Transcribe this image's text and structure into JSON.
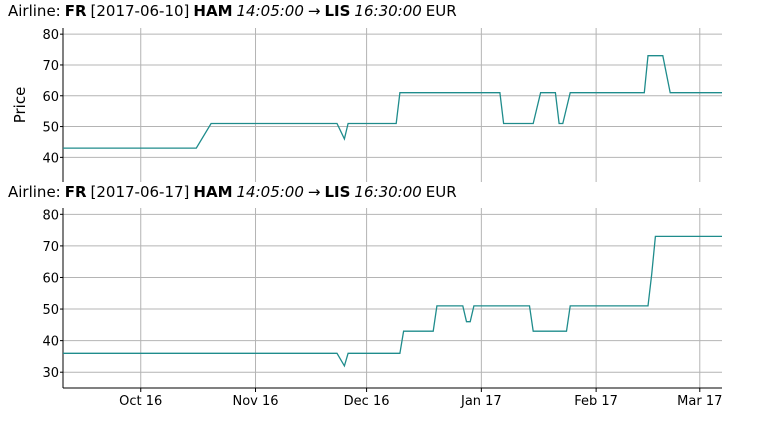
{
  "chart_data": [
    {
      "type": "line",
      "title": [
        {
          "text": "Airline:",
          "style": "normal"
        },
        {
          "text": "FR",
          "style": "bold"
        },
        {
          "text": "[2017-06-10]",
          "style": "normal"
        },
        {
          "text": "HAM",
          "style": "bold"
        },
        {
          "text": "14:05:00",
          "style": "italic"
        },
        {
          "text": "→",
          "style": "normal"
        },
        {
          "text": "LIS",
          "style": "bold"
        },
        {
          "text": "16:30:00",
          "style": "italic"
        },
        {
          "text": "EUR",
          "style": "normal"
        }
      ],
      "ylabel": "Price",
      "x": [
        "2016-09-10",
        "2016-10-16",
        "2016-10-20",
        "2016-11-23",
        "2016-11-25",
        "2016-11-26",
        "2016-12-09",
        "2016-12-10",
        "2017-01-06",
        "2017-01-07",
        "2017-01-15",
        "2017-01-17",
        "2017-01-21",
        "2017-01-22",
        "2017-01-23",
        "2017-01-25",
        "2017-02-14",
        "2017-02-15",
        "2017-02-19",
        "2017-02-21",
        "2017-03-07"
      ],
      "values": [
        43,
        43,
        51,
        51,
        46,
        51,
        51,
        61,
        61,
        51,
        51,
        61,
        61,
        51,
        51,
        61,
        61,
        73,
        73,
        61,
        61
      ],
      "color": "#1f8c8c",
      "xlim": [
        "2016-09-10",
        "2017-03-07"
      ],
      "xticks": [
        "2016-10-01",
        "2016-11-01",
        "2016-12-01",
        "2017-01-01",
        "2017-02-01",
        "2017-03-01"
      ],
      "ylim": [
        32,
        82
      ],
      "yticks": [
        40,
        50,
        60,
        70,
        80
      ],
      "grid": true
    },
    {
      "type": "line",
      "title": [
        {
          "text": "Airline:",
          "style": "normal"
        },
        {
          "text": "FR",
          "style": "bold"
        },
        {
          "text": "[2017-06-17]",
          "style": "normal"
        },
        {
          "text": "HAM",
          "style": "bold"
        },
        {
          "text": "14:05:00",
          "style": "italic"
        },
        {
          "text": "→",
          "style": "normal"
        },
        {
          "text": "LIS",
          "style": "bold"
        },
        {
          "text": "16:30:00",
          "style": "italic"
        },
        {
          "text": "EUR",
          "style": "normal"
        }
      ],
      "x": [
        "2016-09-10",
        "2016-11-23",
        "2016-11-25",
        "2016-11-26",
        "2016-12-10",
        "2016-12-11",
        "2016-12-19",
        "2016-12-20",
        "2016-12-27",
        "2016-12-28",
        "2016-12-29",
        "2016-12-30",
        "2017-01-14",
        "2017-01-15",
        "2017-01-24",
        "2017-01-25",
        "2017-02-15",
        "2017-02-16",
        "2017-02-17",
        "2017-03-07"
      ],
      "values": [
        36,
        36,
        32,
        36,
        36,
        43,
        43,
        51,
        51,
        46,
        46,
        51,
        51,
        43,
        43,
        51,
        51,
        61,
        73,
        73
      ],
      "color": "#1f8c8c",
      "xlim": [
        "2016-09-10",
        "2017-03-07"
      ],
      "xticks": [
        {
          "value": "2016-10-01",
          "label": "Oct 16"
        },
        {
          "value": "2016-11-01",
          "label": "Nov 16"
        },
        {
          "value": "2016-12-01",
          "label": "Dec 16"
        },
        {
          "value": "2017-01-01",
          "label": "Jan 17"
        },
        {
          "value": "2017-02-01",
          "label": "Feb 17"
        },
        {
          "value": "2017-03-01",
          "label": "Mar 17"
        }
      ],
      "ylim": [
        25,
        82
      ],
      "yticks": [
        30,
        40,
        50,
        60,
        70,
        80
      ],
      "grid": true
    }
  ]
}
